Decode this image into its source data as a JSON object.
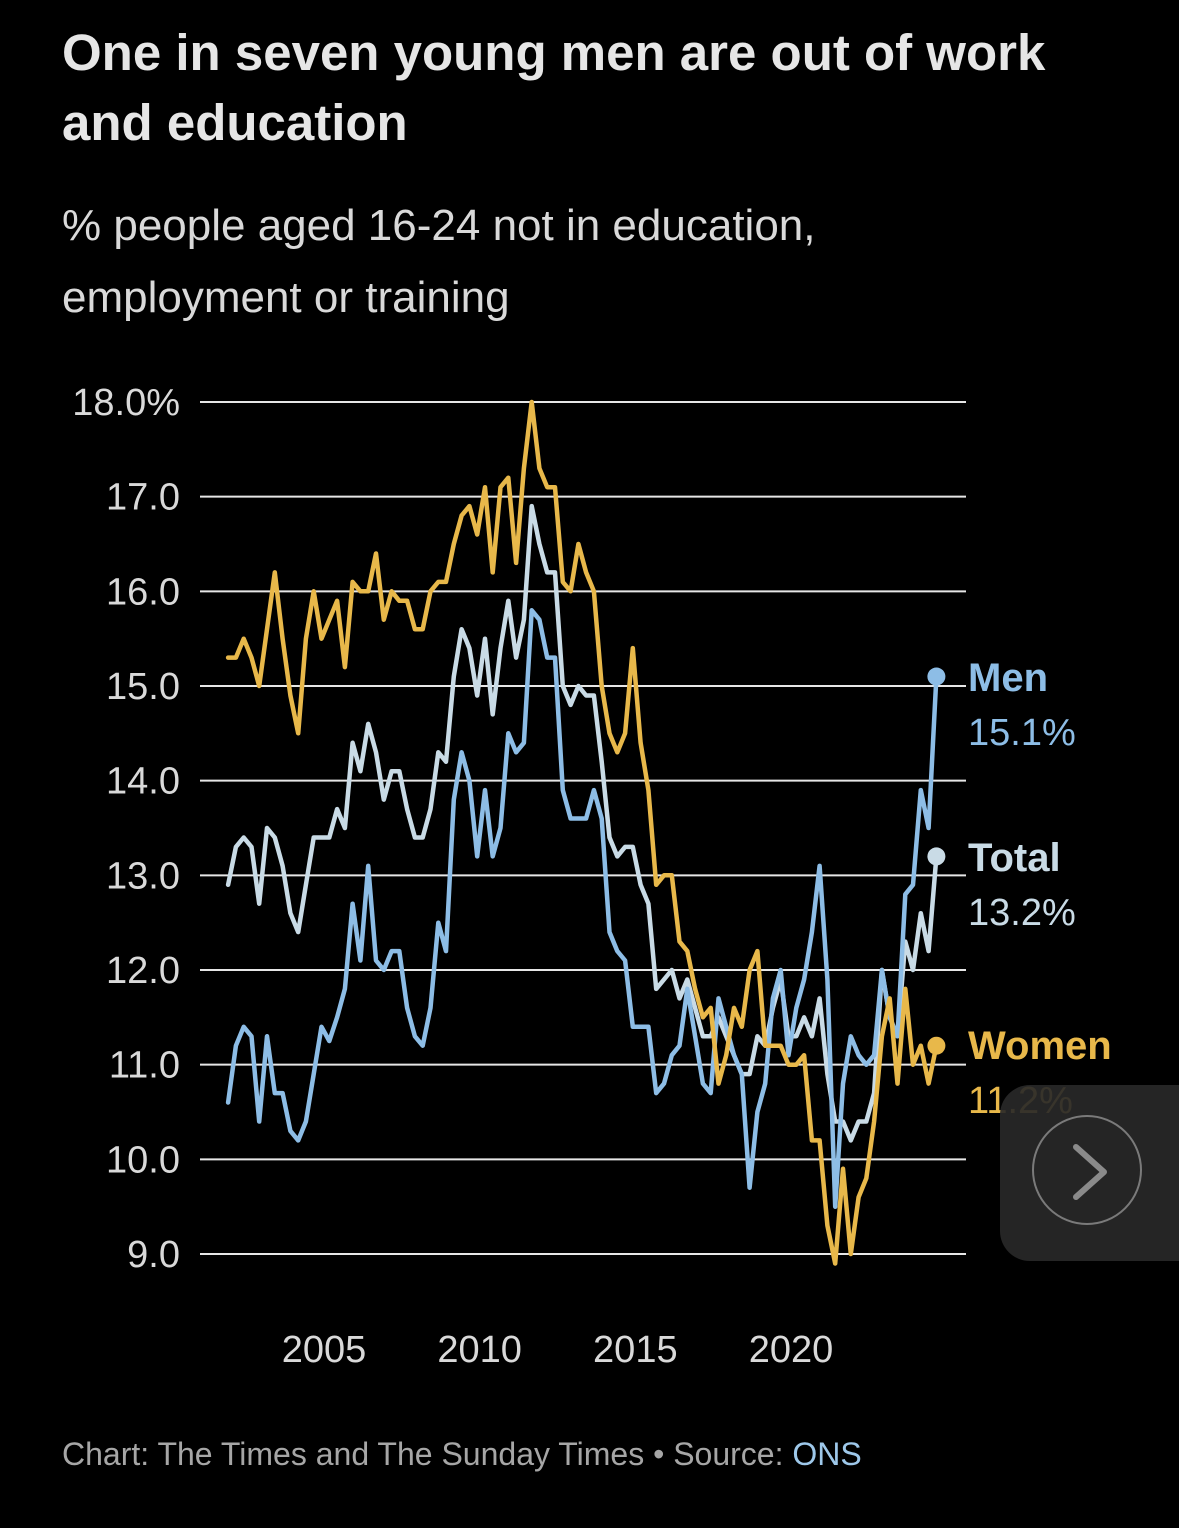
{
  "title": "One in seven young men are out of work and education",
  "subtitle": "% people aged 16-24 not in education, employment or training",
  "footer": {
    "credit": "Chart: The Times and The Sunday Times",
    "separator": " • ",
    "source_label": "Source: ",
    "source_link": "ONS"
  },
  "next_button": {
    "icon": "chevron-right-icon"
  },
  "colors": {
    "background": "#000000",
    "men": "#8dbde6",
    "total": "#c9dbe6",
    "women": "#e8b84a",
    "grid": "#e6e6e6",
    "text": "#d9d9d9"
  },
  "chart_data": {
    "type": "line",
    "title": "One in seven young men are out of work and education",
    "subtitle": "% people aged 16-24 not in education, employment or training",
    "xlabel": "",
    "ylabel": "",
    "x_start": 2001.92,
    "x_step": 0.25,
    "x_ticks": [
      2005,
      2010,
      2015,
      2020
    ],
    "x_tick_labels": [
      "2005",
      "2010",
      "2015",
      "2020"
    ],
    "ylim": [
      9.0,
      18.0
    ],
    "y_ticks": [
      18,
      17,
      16,
      15,
      14,
      13,
      12,
      11,
      10,
      9
    ],
    "y_tick_labels": [
      "18.0%",
      "17.0",
      "16.0",
      "15.0",
      "14.0",
      "13.0",
      "12.0",
      "11.0",
      "10.0",
      "9.0"
    ],
    "grid": true,
    "legend": "end-of-line labels",
    "series": [
      {
        "name": "Men",
        "end_label": "15.1%",
        "color": "#8dbde6",
        "values": [
          10.6,
          11.2,
          11.4,
          11.3,
          10.4,
          11.3,
          10.7,
          10.7,
          10.3,
          10.2,
          10.4,
          10.9,
          11.4,
          11.25,
          11.5,
          11.8,
          12.7,
          12.1,
          13.1,
          12.1,
          12.0,
          12.2,
          12.2,
          11.6,
          11.3,
          11.2,
          11.6,
          12.5,
          12.2,
          13.8,
          14.3,
          14.0,
          13.2,
          13.9,
          13.2,
          13.5,
          14.5,
          14.3,
          14.4,
          15.8,
          15.7,
          15.3,
          15.3,
          13.9,
          13.6,
          13.6,
          13.6,
          13.9,
          13.6,
          12.4,
          12.2,
          12.1,
          11.4,
          11.4,
          11.4,
          10.7,
          10.8,
          11.1,
          11.2,
          11.8,
          11.3,
          10.8,
          10.7,
          11.7,
          11.4,
          11.1,
          10.9,
          9.7,
          10.5,
          10.8,
          11.7,
          12.0,
          11.1,
          11.6,
          11.9,
          12.4,
          13.1,
          11.9,
          9.5,
          10.8,
          11.3,
          11.1,
          11.0,
          11.1,
          12.0,
          11.5,
          11.3,
          12.8,
          12.9,
          13.9,
          13.5,
          15.1
        ]
      },
      {
        "name": "Total",
        "end_label": "13.2%",
        "color": "#c9dbe6",
        "values": [
          12.9,
          13.3,
          13.4,
          13.3,
          12.7,
          13.5,
          13.4,
          13.1,
          12.6,
          12.4,
          12.9,
          13.4,
          13.4,
          13.4,
          13.7,
          13.5,
          14.4,
          14.1,
          14.6,
          14.3,
          13.8,
          14.1,
          14.1,
          13.7,
          13.4,
          13.4,
          13.7,
          14.3,
          14.2,
          15.1,
          15.6,
          15.4,
          14.9,
          15.5,
          14.7,
          15.4,
          15.9,
          15.3,
          15.7,
          16.9,
          16.5,
          16.2,
          16.2,
          15.0,
          14.8,
          15.0,
          14.9,
          14.9,
          14.2,
          13.4,
          13.2,
          13.3,
          13.3,
          12.9,
          12.7,
          11.8,
          11.9,
          12.0,
          11.7,
          11.9,
          11.6,
          11.3,
          11.3,
          11.5,
          11.3,
          11.1,
          10.9,
          10.9,
          11.3,
          11.2,
          11.6,
          11.9,
          11.3,
          11.3,
          11.5,
          11.3,
          11.7,
          10.9,
          10.4,
          10.4,
          10.2,
          10.4,
          10.4,
          10.7,
          12.0,
          11.5,
          11.3,
          12.3,
          12.0,
          12.6,
          12.2,
          13.2
        ]
      },
      {
        "name": "Women",
        "end_label": "11.2%",
        "color": "#e8b84a",
        "values": [
          15.3,
          15.3,
          15.5,
          15.3,
          15.0,
          15.6,
          16.2,
          15.5,
          14.9,
          14.5,
          15.5,
          16.0,
          15.5,
          15.7,
          15.9,
          15.2,
          16.1,
          16.0,
          16.0,
          16.4,
          15.7,
          16.0,
          15.9,
          15.9,
          15.6,
          15.6,
          16.0,
          16.1,
          16.1,
          16.5,
          16.8,
          16.9,
          16.6,
          17.1,
          16.2,
          17.1,
          17.2,
          16.3,
          17.3,
          18.0,
          17.3,
          17.1,
          17.1,
          16.1,
          16.0,
          16.5,
          16.2,
          16.0,
          15.0,
          14.5,
          14.3,
          14.5,
          15.4,
          14.4,
          13.9,
          12.9,
          13.0,
          13.0,
          12.3,
          12.2,
          11.8,
          11.5,
          11.6,
          10.8,
          11.1,
          11.6,
          11.4,
          12.0,
          12.2,
          11.2,
          11.2,
          11.2,
          11.0,
          11.0,
          11.1,
          10.2,
          10.2,
          9.3,
          8.9,
          9.9,
          9.0,
          9.6,
          9.8,
          10.4,
          11.3,
          11.7,
          10.8,
          11.8,
          11.0,
          11.2,
          10.8,
          11.2
        ]
      }
    ]
  }
}
